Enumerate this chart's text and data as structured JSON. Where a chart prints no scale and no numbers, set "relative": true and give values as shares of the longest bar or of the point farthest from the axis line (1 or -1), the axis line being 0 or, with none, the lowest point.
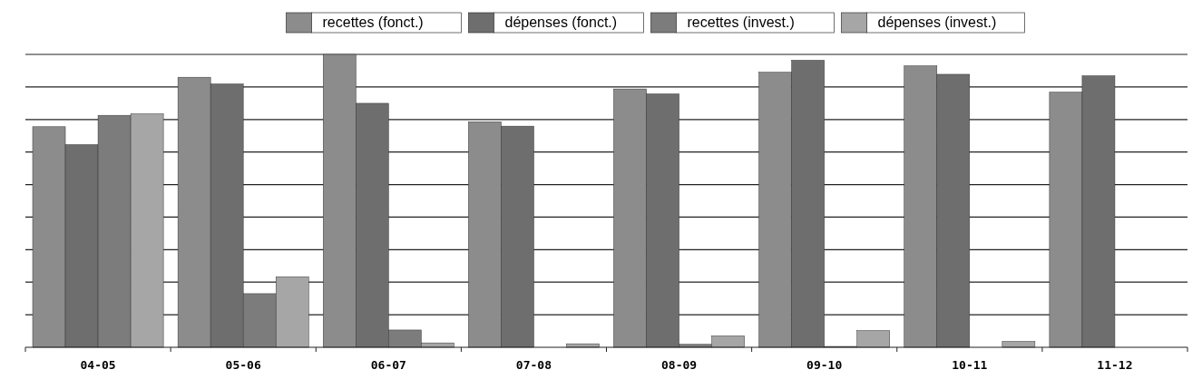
{
  "chart_data": {
    "type": "bar",
    "relative": true,
    "categories": [
      "04-05",
      "05-06",
      "06-07",
      "07-08",
      "08-09",
      "09-10",
      "10-11",
      "11-12"
    ],
    "series": [
      {
        "name": "recettes (fonct.)",
        "color": "#8c8c8c",
        "values": [
          0.753,
          0.922,
          1.0,
          0.77,
          0.882,
          0.939,
          0.961,
          0.871
        ]
      },
      {
        "name": "dépenses (fonct.)",
        "color": "#6e6e6e",
        "values": [
          0.692,
          0.899,
          0.833,
          0.755,
          0.865,
          0.98,
          0.932,
          0.927
        ]
      },
      {
        "name": "recettes (invest.)",
        "color": "#7c7c7c",
        "values": [
          0.792,
          0.183,
          0.059,
          0,
          0.01,
          0.003,
          0,
          0
        ]
      },
      {
        "name": "dépenses (invest.)",
        "color": "#a6a6a6",
        "values": [
          0.797,
          0.241,
          0.015,
          0.012,
          0.039,
          0.057,
          0.02,
          0
        ]
      }
    ],
    "grid": "y",
    "legend": "top"
  }
}
